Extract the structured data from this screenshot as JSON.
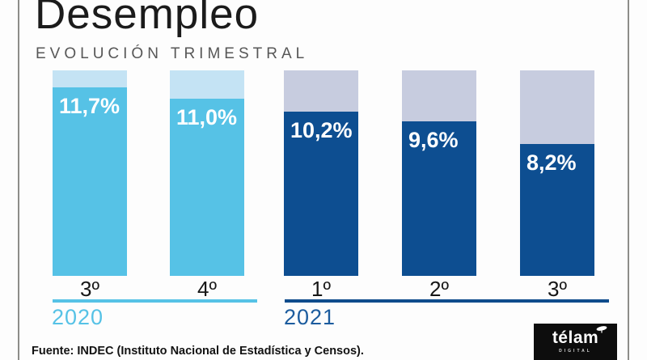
{
  "header": {
    "title": "Desempleo",
    "subtitle": "EVOLUCIÓN TRIMESTRAL"
  },
  "chart_data": {
    "type": "bar",
    "title": "Desempleo",
    "subtitle": "Evolución trimestral",
    "categories": [
      "3º",
      "4º",
      "1º",
      "2º",
      "3º"
    ],
    "values": [
      11.7,
      11.0,
      10.2,
      9.6,
      8.2
    ],
    "value_labels": [
      "11,7%",
      "11,0%",
      "10,2%",
      "9,6%",
      "8,2%"
    ],
    "groups": [
      "2020",
      "2020",
      "2021",
      "2021",
      "2021"
    ],
    "series": [
      {
        "name": "2020",
        "bar_color": "#56C2E6",
        "cap_color": "#C4E3F4",
        "label_color": "#56C2E6",
        "line_color": "#56C2E6"
      },
      {
        "name": "2021",
        "bar_color": "#0D4E91",
        "cap_color": "#C7CCDF",
        "label_color": "#1C5C9E",
        "line_color": "#0F4C8C"
      }
    ],
    "ylim": [
      0,
      12.75
    ],
    "grid": false,
    "legend": false,
    "unit": "%"
  },
  "footer": {
    "source": "Fuente: INDEC (Instituto Nacional de Estadística y Censos)."
  },
  "logo": {
    "wordmark": "télam",
    "tagline": "DIGITAL"
  }
}
